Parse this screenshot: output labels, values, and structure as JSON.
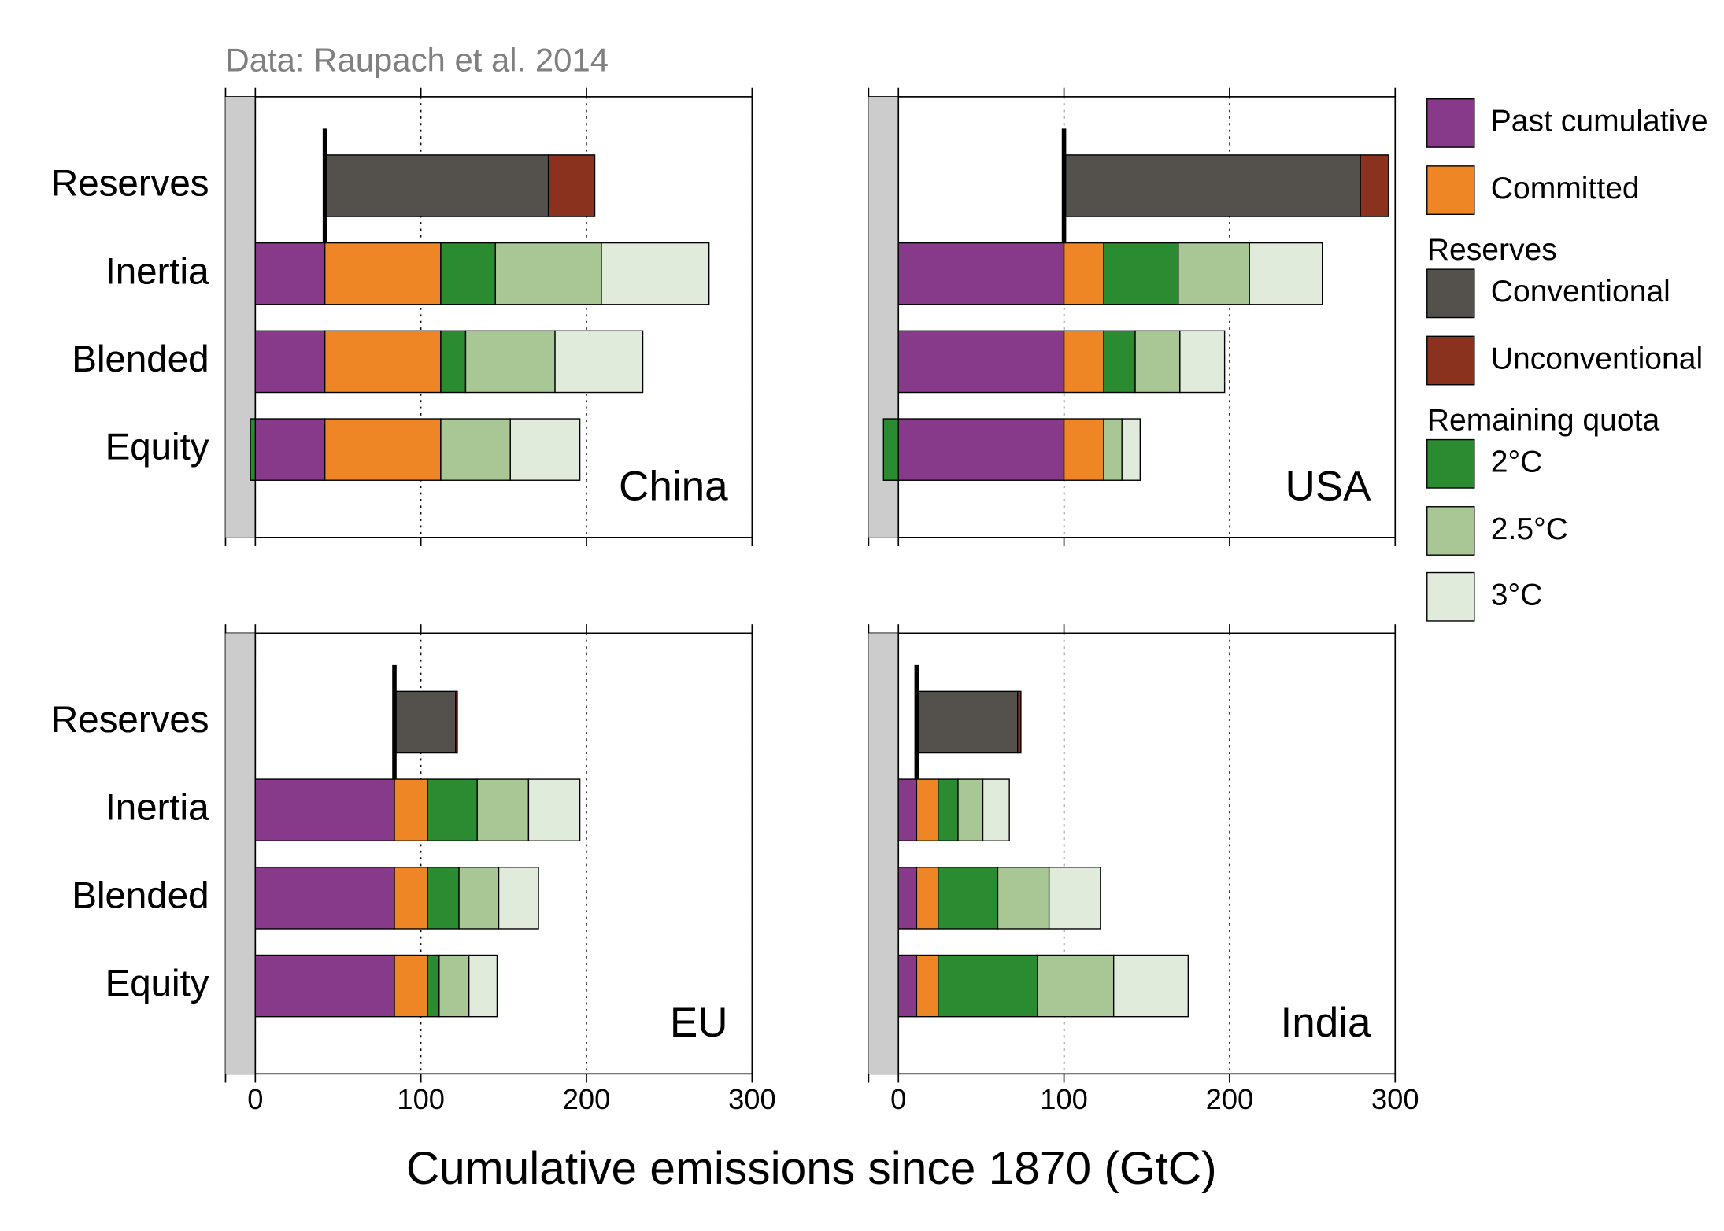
{
  "source": "Data: Raupach et al. 2014",
  "xlabel": "Cumulative emissions since 1870 (GtC)",
  "legend_headings": [
    "Reserves",
    "Remaining quota"
  ],
  "chart_data": [
    {
      "type": "bar",
      "title": "China",
      "categories": [
        "Reserves",
        "Inertia",
        "Blended",
        "Equity"
      ],
      "xlim": [
        -18,
        300
      ],
      "xticks": [
        0,
        100,
        200,
        300
      ],
      "show_xtick_labels": false,
      "grid": true,
      "series": [
        {
          "name": "Past cumulative",
          "color": "#873a8a",
          "values": [
            42,
            42,
            42,
            42
          ],
          "style": [
            "line",
            "bar",
            "bar",
            "bar"
          ]
        },
        {
          "name": "Committed",
          "color": "#ef8626",
          "values": [
            null,
            70,
            70,
            70
          ]
        },
        {
          "name": "Conventional",
          "color": "#54514c",
          "values": [
            135,
            null,
            null,
            null
          ]
        },
        {
          "name": "Unconventional",
          "color": "#8b321e",
          "values": [
            28,
            null,
            null,
            null
          ]
        },
        {
          "name": "2°C",
          "color": "#2a8b31",
          "values": [
            null,
            33,
            15,
            -3
          ]
        },
        {
          "name": "2.5°C",
          "color": "#a8c795",
          "values": [
            null,
            64,
            54,
            42
          ]
        },
        {
          "name": "3°C",
          "color": "#e1ebdb",
          "values": [
            null,
            65,
            53,
            42
          ]
        }
      ]
    },
    {
      "type": "bar",
      "title": "USA",
      "categories": [
        "Reserves",
        "Inertia",
        "Blended",
        "Equity"
      ],
      "xlim": [
        -18,
        300
      ],
      "xticks": [
        0,
        100,
        200,
        300
      ],
      "show_xtick_labels": false,
      "grid": true,
      "series": [
        {
          "name": "Past cumulative",
          "color": "#873a8a",
          "values": [
            100,
            100,
            100,
            100
          ],
          "style": [
            "line",
            "bar",
            "bar",
            "bar"
          ]
        },
        {
          "name": "Committed",
          "color": "#ef8626",
          "values": [
            null,
            24,
            24,
            24
          ]
        },
        {
          "name": "Conventional",
          "color": "#54514c",
          "values": [
            179,
            null,
            null,
            null
          ]
        },
        {
          "name": "Unconventional",
          "color": "#8b321e",
          "values": [
            17,
            null,
            null,
            null
          ]
        },
        {
          "name": "2°C",
          "color": "#2a8b31",
          "values": [
            null,
            45,
            19,
            -9
          ]
        },
        {
          "name": "2.5°C",
          "color": "#a8c795",
          "values": [
            null,
            43,
            27,
            11
          ]
        },
        {
          "name": "3°C",
          "color": "#e1ebdb",
          "values": [
            null,
            44,
            27,
            11
          ]
        }
      ]
    },
    {
      "type": "bar",
      "title": "EU",
      "categories": [
        "Reserves",
        "Inertia",
        "Blended",
        "Equity"
      ],
      "xlim": [
        -18,
        300
      ],
      "xticks": [
        0,
        100,
        200,
        300
      ],
      "show_xtick_labels": true,
      "grid": true,
      "series": [
        {
          "name": "Past cumulative",
          "color": "#873a8a",
          "values": [
            84,
            84,
            84,
            84
          ],
          "style": [
            "line",
            "bar",
            "bar",
            "bar"
          ]
        },
        {
          "name": "Committed",
          "color": "#ef8626",
          "values": [
            null,
            20,
            20,
            20
          ]
        },
        {
          "name": "Conventional",
          "color": "#54514c",
          "values": [
            37,
            null,
            null,
            null
          ]
        },
        {
          "name": "Unconventional",
          "color": "#8b321e",
          "values": [
            1,
            null,
            null,
            null
          ]
        },
        {
          "name": "2°C",
          "color": "#2a8b31",
          "values": [
            null,
            30,
            19,
            7
          ]
        },
        {
          "name": "2.5°C",
          "color": "#a8c795",
          "values": [
            null,
            31,
            24,
            18
          ]
        },
        {
          "name": "3°C",
          "color": "#e1ebdb",
          "values": [
            null,
            31,
            24,
            17
          ]
        }
      ]
    },
    {
      "type": "bar",
      "title": "India",
      "categories": [
        "Reserves",
        "Inertia",
        "Blended",
        "Equity"
      ],
      "xlim": [
        -18,
        300
      ],
      "xticks": [
        0,
        100,
        200,
        300
      ],
      "show_xtick_labels": true,
      "grid": true,
      "series": [
        {
          "name": "Past cumulative",
          "color": "#873a8a",
          "values": [
            11,
            11,
            11,
            11
          ],
          "style": [
            "line",
            "bar",
            "bar",
            "bar"
          ]
        },
        {
          "name": "Committed",
          "color": "#ef8626",
          "values": [
            null,
            13,
            13,
            13
          ]
        },
        {
          "name": "Conventional",
          "color": "#54514c",
          "values": [
            61,
            null,
            null,
            null
          ]
        },
        {
          "name": "Unconventional",
          "color": "#8b321e",
          "values": [
            2,
            null,
            null,
            null
          ]
        },
        {
          "name": "2°C",
          "color": "#2a8b31",
          "values": [
            null,
            12,
            36,
            60
          ]
        },
        {
          "name": "2.5°C",
          "color": "#a8c795",
          "values": [
            null,
            15,
            31,
            46
          ]
        },
        {
          "name": "3°C",
          "color": "#e1ebdb",
          "values": [
            null,
            16,
            31,
            45
          ]
        }
      ]
    }
  ]
}
